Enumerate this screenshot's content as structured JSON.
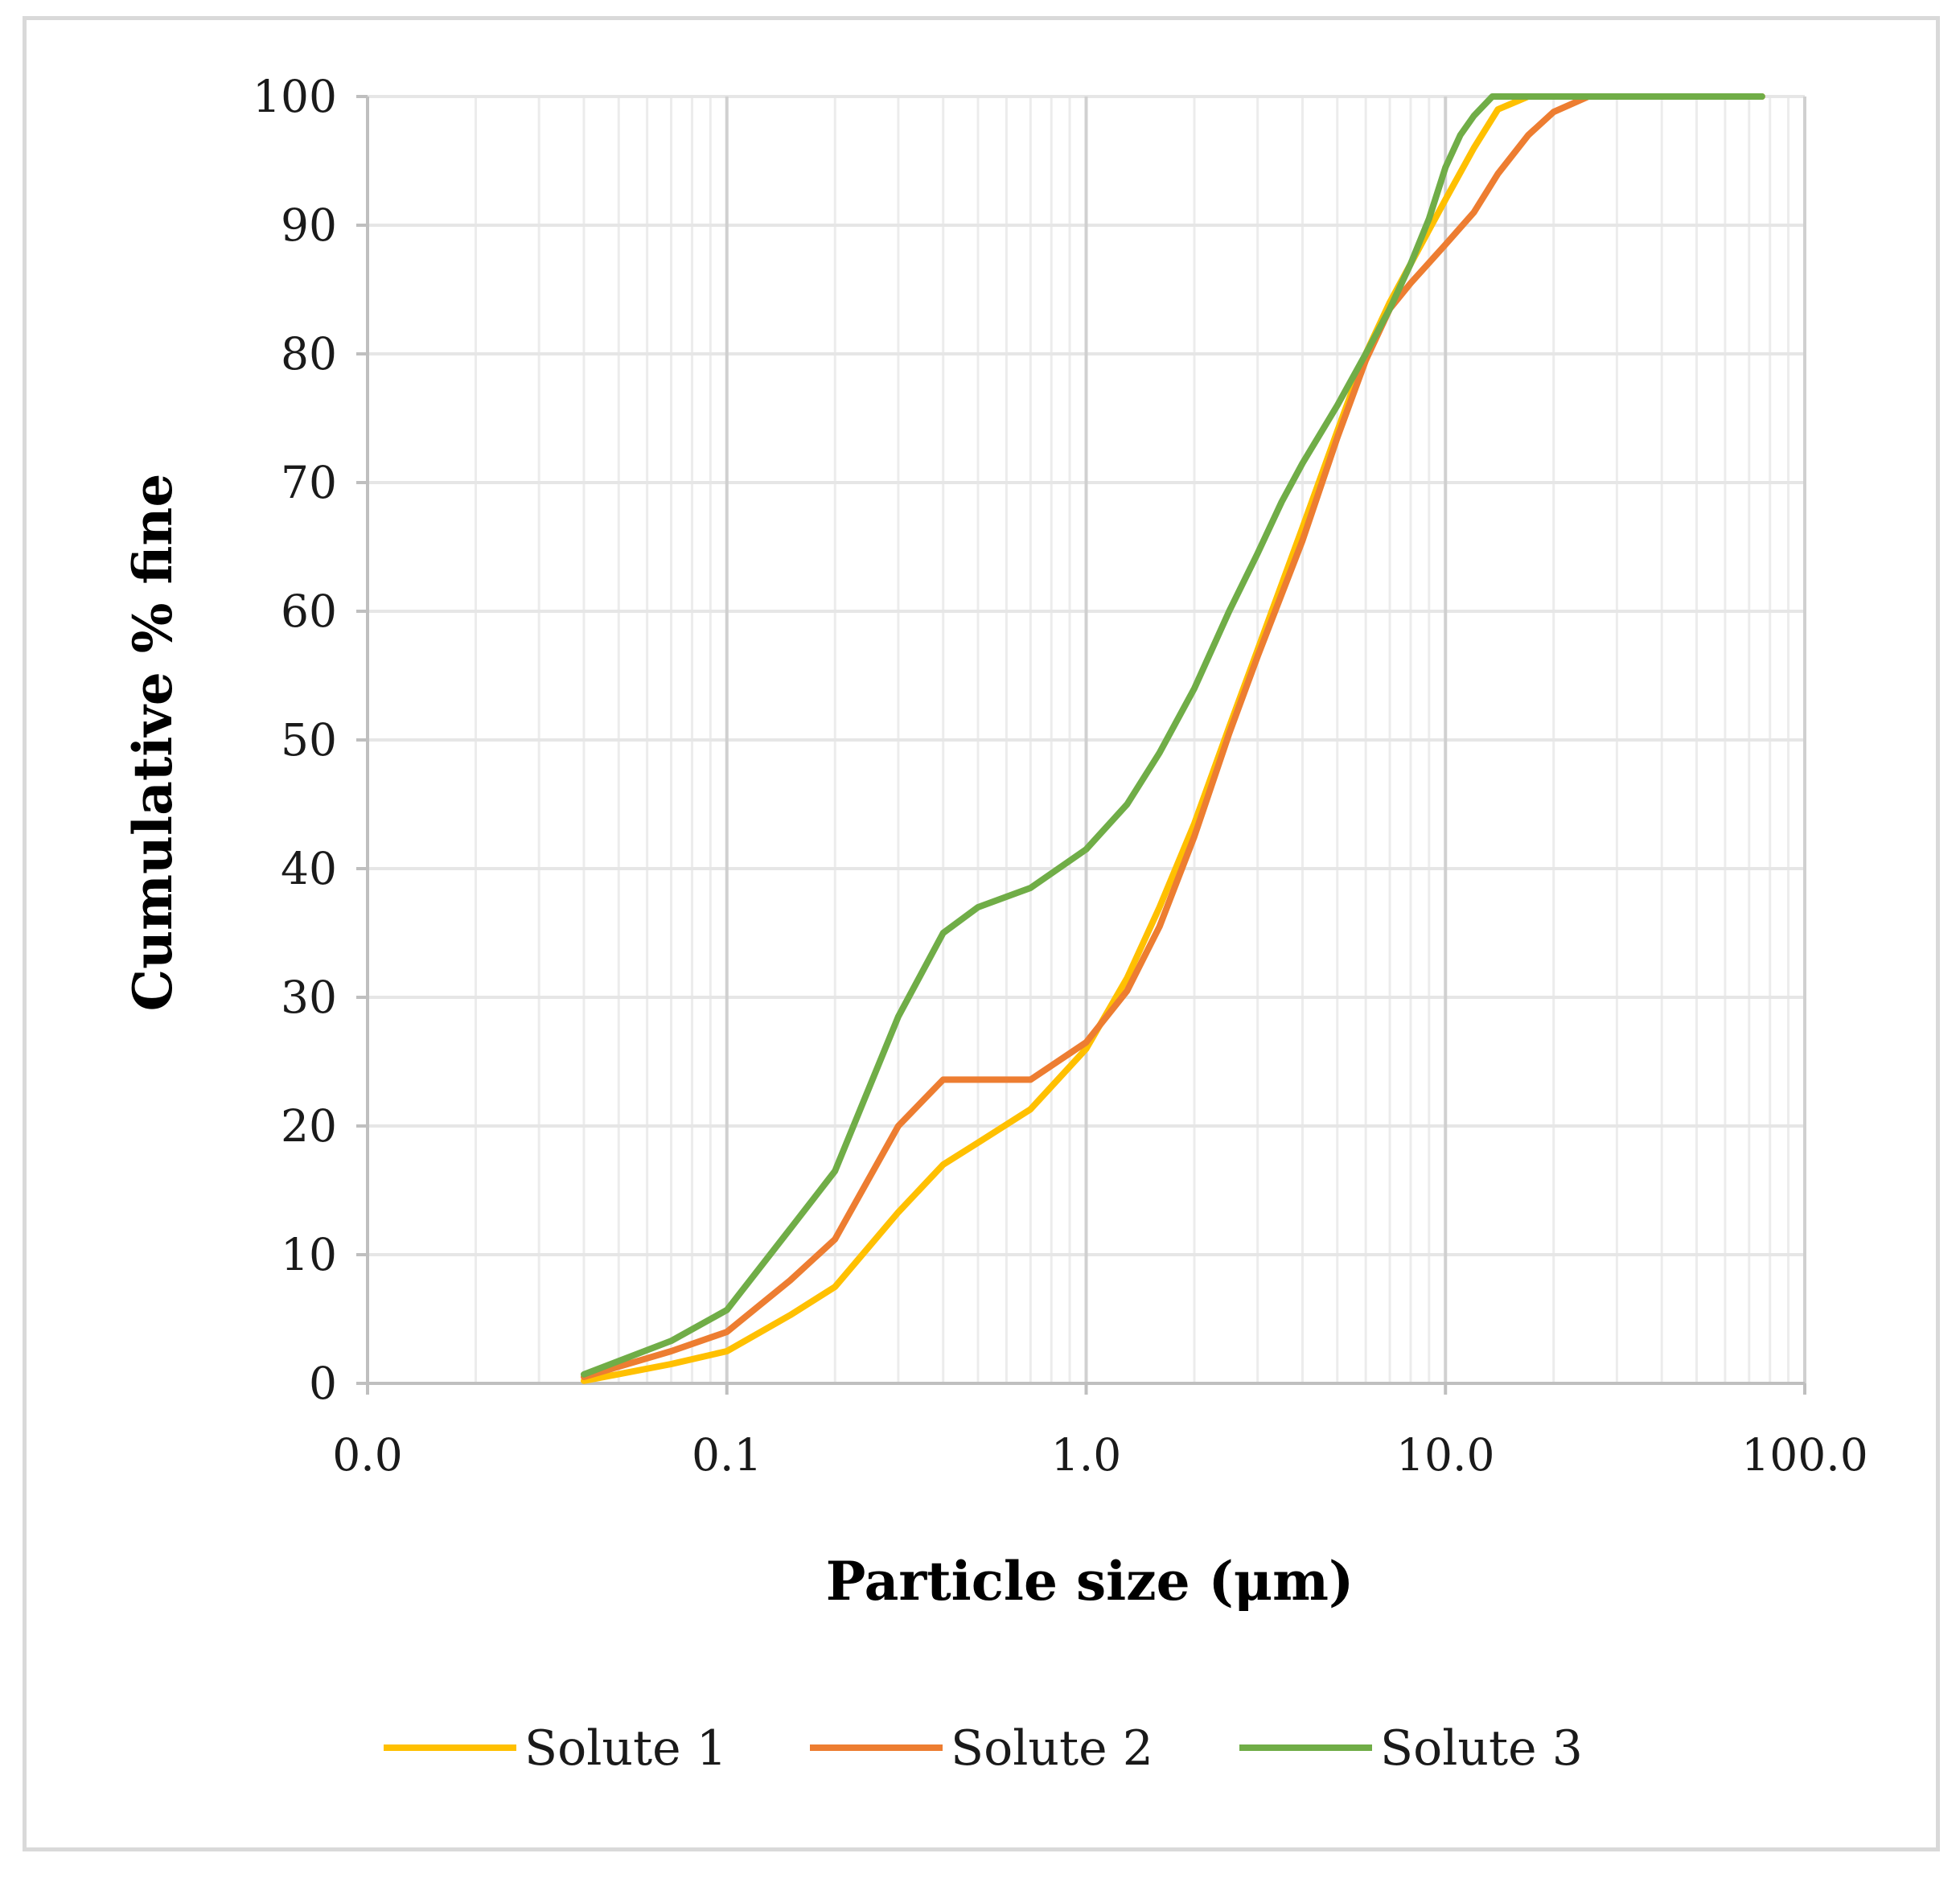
{
  "chart_data": {
    "type": "line",
    "title": "",
    "xlabel": "Particle size (μm)",
    "ylabel": "Cumulative % fine",
    "x_scale": "log",
    "xlim": [
      0.01,
      100
    ],
    "ylim": [
      0,
      100
    ],
    "x_ticks": [
      0.01,
      0.1,
      1,
      10,
      100
    ],
    "x_tick_labels": [
      "0.0",
      "0.1",
      "1.0",
      "10.0",
      "100.0"
    ],
    "y_ticks": [
      0,
      10,
      20,
      30,
      40,
      50,
      60,
      70,
      80,
      90,
      100
    ],
    "y_tick_labels": [
      "0",
      "10",
      "20",
      "30",
      "40",
      "50",
      "60",
      "70",
      "80",
      "90",
      "100"
    ],
    "grid": true,
    "legend_position": "bottom",
    "series": [
      {
        "name": "Solute 1",
        "color": "#FFC000",
        "x": [
          0.04,
          0.07,
          0.1,
          0.15,
          0.2,
          0.3,
          0.4,
          0.5,
          0.7,
          1.0,
          1.3,
          1.6,
          2.0,
          2.5,
          3.0,
          4.0,
          5.0,
          6.0,
          7.0,
          8.0,
          10.0,
          12.0,
          14.0,
          17.0,
          20.0,
          30.0,
          50.0,
          76.0
        ],
        "values": [
          0.2,
          1.5,
          2.5,
          5.3,
          7.5,
          13.3,
          17.0,
          18.7,
          21.3,
          26.0,
          31.5,
          37.0,
          43.5,
          51.0,
          57.0,
          66.5,
          74.0,
          80.0,
          84.0,
          87.0,
          92.0,
          96.0,
          99.0,
          100,
          100,
          100,
          100,
          100
        ]
      },
      {
        "name": "Solute 2",
        "color": "#ED7D31",
        "x": [
          0.04,
          0.07,
          0.1,
          0.15,
          0.2,
          0.3,
          0.4,
          0.5,
          0.7,
          1.0,
          1.3,
          1.6,
          2.0,
          2.5,
          3.0,
          4.0,
          5.0,
          6.0,
          7.0,
          8.0,
          10.0,
          12.0,
          14.0,
          17.0,
          20.0,
          25.0,
          30.0,
          50.0,
          76.0
        ],
        "values": [
          0.5,
          2.5,
          4.0,
          8.0,
          11.2,
          20.0,
          23.6,
          23.6,
          23.6,
          26.5,
          30.5,
          35.5,
          42.5,
          50.5,
          56.5,
          65.5,
          73.5,
          79.5,
          83.5,
          85.5,
          88.5,
          91.0,
          94.0,
          97.0,
          98.8,
          100,
          100,
          100,
          100
        ]
      },
      {
        "name": "Solute 3",
        "color": "#70AD47",
        "x": [
          0.04,
          0.07,
          0.1,
          0.15,
          0.2,
          0.3,
          0.4,
          0.5,
          0.7,
          1.0,
          1.3,
          1.6,
          2.0,
          2.5,
          3.0,
          3.5,
          4.0,
          5.0,
          6.0,
          7.0,
          8.0,
          9.0,
          10.0,
          11.0,
          12.0,
          13.5,
          17.0,
          30.0,
          50.0,
          76.0
        ],
        "values": [
          0.7,
          3.3,
          5.7,
          12.0,
          16.5,
          28.5,
          35.0,
          37.0,
          38.5,
          41.5,
          45.0,
          49.0,
          54.0,
          60.0,
          64.5,
          68.5,
          71.5,
          76.0,
          80.0,
          83.5,
          87.0,
          90.5,
          94.5,
          97.0,
          98.5,
          100,
          100,
          100,
          100,
          100
        ]
      }
    ]
  }
}
